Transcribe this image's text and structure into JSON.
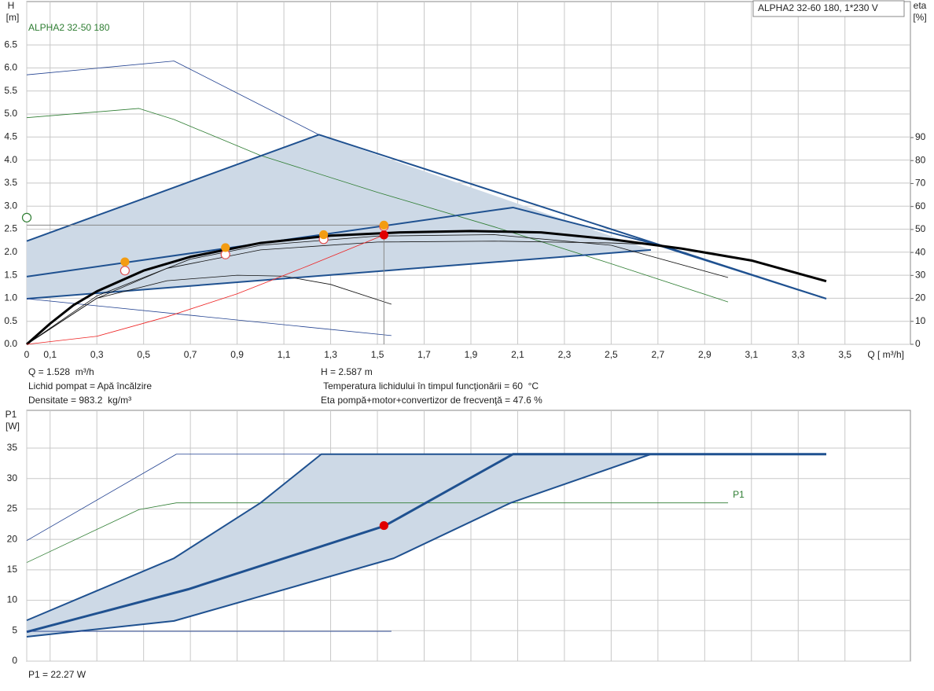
{
  "chart_data": [
    {
      "type": "line",
      "title": "ALPHA2 32-60 180, 1*230 V",
      "ylabel": "H",
      "yunit": "[m]",
      "y2label": "eta",
      "y2unit": "[%]",
      "xlabel": "Q [ m³/h]",
      "xlim": [
        0,
        3.78
      ],
      "ylim": [
        0,
        7.44
      ],
      "y2lim": [
        0,
        149.2
      ],
      "grid": true,
      "xticks": [
        0,
        {
          "value": 0.1,
          "label": "0,1"
        },
        {
          "value": 0.3,
          "label": "0,3"
        },
        {
          "value": 0.5,
          "label": "0,5"
        },
        {
          "value": 0.7,
          "label": "0,7"
        },
        {
          "value": 0.9,
          "label": "0,9"
        },
        {
          "value": 1.1,
          "label": "1,1"
        },
        {
          "value": 1.3,
          "label": "1,3"
        },
        {
          "value": 1.5,
          "label": "1,5"
        },
        {
          "value": 1.7,
          "label": "1,7"
        },
        {
          "value": 1.9,
          "label": "1,9"
        },
        {
          "value": 2.1,
          "label": "2,1"
        },
        {
          "value": 2.3,
          "label": "2,3"
        },
        {
          "value": 2.5,
          "label": "2,5"
        },
        {
          "value": 2.7,
          "label": "2,7"
        },
        {
          "value": 2.9,
          "label": "2,9"
        },
        {
          "value": 3.1,
          "label": "3,1"
        },
        {
          "value": 3.3,
          "label": "3,3"
        },
        {
          "value": 3.5,
          "label": "3,5"
        }
      ],
      "yticks": [
        {
          "value": 0,
          "label": "0.0"
        },
        0.5,
        {
          "value": 1,
          "label": "1.0"
        },
        1.5,
        {
          "value": 2,
          "label": "2.0"
        },
        2.5,
        {
          "value": 3,
          "label": "3.0"
        },
        3.5,
        {
          "value": 4,
          "label": "4.0"
        },
        4.5,
        {
          "value": 5,
          "label": "5.0"
        },
        5.5,
        {
          "value": 6,
          "label": "6.0"
        },
        6.5
      ],
      "y2ticks": [
        0,
        10,
        20,
        30,
        40,
        50,
        60,
        70,
        80,
        90
      ],
      "series": [
        {
          "style": "area",
          "color": "#cdd9e6",
          "x": [
            0,
            1.25,
            2.67,
            0
          ],
          "values": [
            2.24,
            4.55,
            2.05,
            0.99
          ]
        },
        {
          "style": "thin",
          "color": "#1f3f8f",
          "x": [
            0,
            0.63,
            1.25
          ],
          "values": [
            5.85,
            6.15,
            4.55
          ]
        },
        {
          "name": "ALPHA2 32-50 180",
          "name_position": "top-left",
          "style": "thin",
          "color": "#2e7d32",
          "x": [
            0,
            0.48,
            0.63,
            1.0,
            1.5,
            2.0,
            2.5,
            3.0
          ],
          "values": [
            4.92,
            5.12,
            4.88,
            4.1,
            3.3,
            2.55,
            1.75,
            0.92
          ]
        },
        {
          "style": "edge",
          "color": "#1f5190",
          "x": [
            0,
            1.25,
            3.42
          ],
          "values": [
            2.24,
            4.55,
            0.99
          ]
        },
        {
          "style": "edge",
          "color": "#1f5190",
          "x": [
            0,
            2.08,
            2.67,
            3.42
          ],
          "values": [
            1.47,
            2.97,
            2.2,
            0.99
          ]
        },
        {
          "style": "edge",
          "color": "#1f5190",
          "x": [
            0,
            2.67
          ],
          "values": [
            0.99,
            2.05
          ]
        },
        {
          "style": "thin",
          "color": "#1f3f8f",
          "x": [
            0,
            1.56
          ],
          "values": [
            0.99,
            0.19
          ]
        },
        {
          "style": "thin",
          "color": "#111111",
          "x": [
            0,
            0.3,
            0.6,
            1.0,
            1.5,
            2.0,
            2.5,
            2.65
          ],
          "values": [
            0,
            1.0,
            1.65,
            2.05,
            2.22,
            2.24,
            2.2,
            2.17
          ]
        },
        {
          "style": "thin",
          "color": "#111111",
          "x": [
            0,
            0.3,
            0.7,
            1.0,
            1.5,
            2.0,
            2.5,
            3.0
          ],
          "values": [
            0,
            1.05,
            1.85,
            2.15,
            2.35,
            2.38,
            2.15,
            1.45
          ]
        },
        {
          "style": "thin",
          "color": "#111111",
          "x": [
            0,
            0.3,
            0.6,
            0.9,
            1.1,
            1.3,
            1.56
          ],
          "values": [
            0,
            1.0,
            1.38,
            1.5,
            1.48,
            1.3,
            0.87
          ]
        },
        {
          "style": "thick",
          "color": "#000000",
          "x": [
            0,
            0.1,
            0.2,
            0.3,
            0.5,
            0.7,
            1.0,
            1.3,
            1.6,
            1.9,
            2.2,
            2.5,
            2.8,
            3.1,
            3.42
          ],
          "values": [
            0,
            0.45,
            0.85,
            1.15,
            1.6,
            1.9,
            2.2,
            2.36,
            2.43,
            2.46,
            2.43,
            2.28,
            2.08,
            1.82,
            1.37
          ]
        },
        {
          "style": "thin",
          "color": "#ee2222",
          "axis": "y2",
          "x": [
            0,
            0.3,
            0.6,
            0.9,
            1.2,
            1.528
          ],
          "values": [
            0,
            3.5,
            12,
            22,
            34,
            47.6
          ]
        },
        {
          "style": "guide",
          "color": "#888888",
          "x": [
            0,
            1.528,
            1.528
          ],
          "values": [
            2.587,
            2.587,
            0
          ]
        },
        {
          "style": "open",
          "color": "#e05050",
          "x": [
            0.42,
            0.85,
            1.27,
            1.528
          ],
          "values": [
            1.6,
            1.95,
            2.28,
            2.56
          ]
        },
        {
          "style": "marker",
          "color": "#f39c12",
          "x": [
            0.42,
            0.85,
            1.27,
            1.528
          ],
          "values": [
            1.79,
            2.1,
            2.38,
            2.587
          ]
        },
        {
          "style": "marker",
          "color": "#e00000",
          "axis": "y2",
          "x": [
            1.528
          ],
          "values": [
            47.6
          ]
        },
        {
          "style": "open",
          "color": "#2e7d32",
          "x": [
            0
          ],
          "values": [
            2.75
          ]
        }
      ],
      "annotations": [
        "Q = 1.528  m³/h",
        "Lichid pompat = Apă încălzire",
        "Densitate = 983.2  kg/m³",
        "H = 2.587 m",
        " Temperatura lichidului în timpul funcţionării = 60  °C",
        "Eta pompă+motor+convertizor de frecvenţă = 47.6 %"
      ]
    },
    {
      "type": "line",
      "ylabel": "P1",
      "yunit": "[W]",
      "xlim": [
        0,
        3.78
      ],
      "ylim": [
        0,
        41.2
      ],
      "grid": true,
      "yticks": [
        0,
        5,
        10,
        15,
        20,
        25,
        30,
        35
      ],
      "series": [
        {
          "style": "area",
          "color": "#cdd9e6",
          "x": [
            0,
            0.63,
            1.0,
            1.26,
            2.67,
            2.07,
            1.57,
            0.63,
            0
          ],
          "values": [
            6.7,
            16.9,
            26,
            34,
            34,
            26,
            16.9,
            6.6,
            4.0
          ]
        },
        {
          "style": "thin",
          "color": "#1f3f8f",
          "x": [
            0,
            0.64,
            1.26
          ],
          "values": [
            19.8,
            34,
            34
          ]
        },
        {
          "name": "P1",
          "name_position": "end",
          "style": "thin",
          "color": "#2e7d32",
          "x": [
            0,
            0.48,
            0.64,
            3.0
          ],
          "values": [
            16.2,
            24.9,
            26,
            26
          ]
        },
        {
          "style": "edge",
          "color": "#1f5190",
          "x": [
            0,
            0.63,
            1.0,
            1.26,
            3.42
          ],
          "values": [
            6.7,
            16.9,
            26,
            34,
            34
          ]
        },
        {
          "style": "edge",
          "color": "#1f5190",
          "x": [
            0,
            0.63,
            1.57,
            2.07,
            2.67,
            3.42
          ],
          "values": [
            4.0,
            6.6,
            16.9,
            26,
            34,
            34
          ]
        },
        {
          "style": "thick",
          "color": "#1f5190",
          "x": [
            0,
            0.69,
            1.53,
            2.08,
            3.42
          ],
          "values": [
            4.8,
            11.8,
            22.2,
            34,
            34
          ]
        },
        {
          "style": "thin",
          "color": "#1f3f8f",
          "x": [
            0,
            1.56
          ],
          "values": [
            4.9,
            4.9
          ]
        },
        {
          "style": "marker",
          "color": "#e00000",
          "x": [
            1.528
          ],
          "values": [
            22.27
          ]
        }
      ],
      "annotations": [
        "P1 = 22.27 W"
      ]
    }
  ]
}
